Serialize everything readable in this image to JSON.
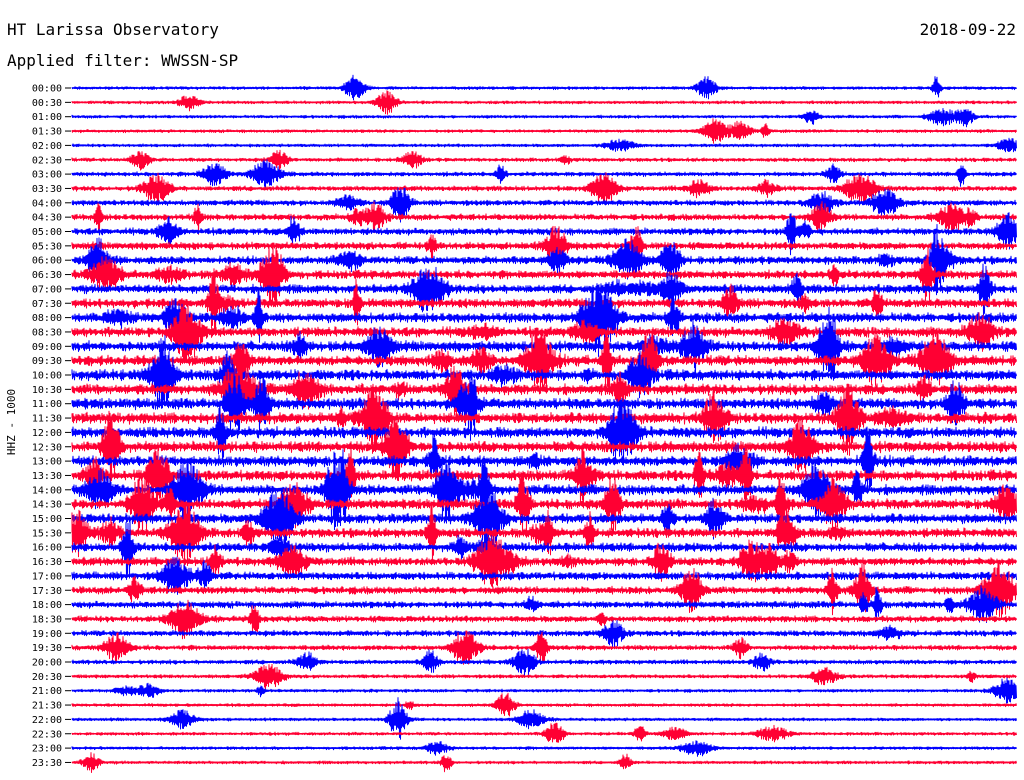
{
  "header": {
    "title": "HT Larissa Observatory",
    "date": "2018-09-22",
    "filter_label": "Applied filter: WWSSN-SP"
  },
  "chart_data": {
    "type": "line",
    "ylabel": "HHZ - 1000",
    "row_labels": [
      "00:00",
      "00:30",
      "01:00",
      "01:30",
      "02:00",
      "02:30",
      "03:00",
      "03:30",
      "04:00",
      "04:30",
      "05:00",
      "05:30",
      "06:00",
      "06:30",
      "07:00",
      "07:30",
      "08:00",
      "08:30",
      "09:00",
      "09:30",
      "10:00",
      "10:30",
      "11:00",
      "11:30",
      "12:00",
      "12:30",
      "13:00",
      "13:30",
      "14:00",
      "14:30",
      "15:00",
      "15:30",
      "16:00",
      "16:30",
      "17:00",
      "17:30",
      "18:00",
      "18:30",
      "19:00",
      "19:30",
      "20:00",
      "20:30",
      "21:00",
      "21:30",
      "22:00",
      "22:30",
      "23:00",
      "23:30"
    ],
    "colors": [
      "#0000ff",
      "#ff0033"
    ],
    "grid": false,
    "legend": "none"
  }
}
